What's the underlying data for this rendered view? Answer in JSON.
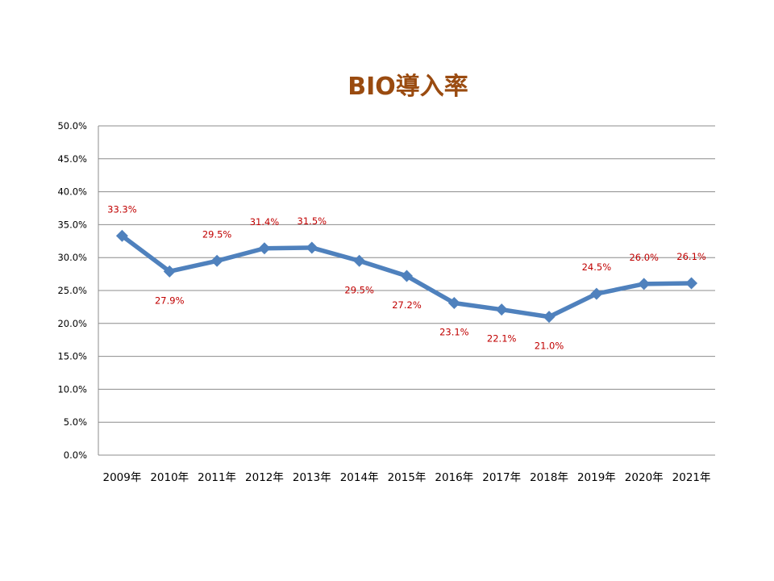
{
  "chart_data": {
    "type": "line",
    "title": "BIO導入率",
    "xlabel": "",
    "ylabel": "",
    "categories": [
      "2009年",
      "2010年",
      "2011年",
      "2012年",
      "2013年",
      "2014年",
      "2015年",
      "2016年",
      "2017年",
      "2018年",
      "2019年",
      "2020年",
      "2021年"
    ],
    "series": [
      {
        "values": [
          33.3,
          27.9,
          29.5,
          31.4,
          31.5,
          29.5,
          27.2,
          23.1,
          22.1,
          21.0,
          24.5,
          26.0,
          26.1
        ],
        "data_labels": [
          "33.3%",
          "27.9%",
          "29.5%",
          "31.4%",
          "31.5%",
          "29.5%",
          "27.2%",
          "23.1%",
          "22.1%",
          "21.0%",
          "24.5%",
          "26.0%",
          "26.1%"
        ]
      }
    ],
    "ylim": [
      0,
      50
    ],
    "yticks": [
      "0.0%",
      "5.0%",
      "10.0%",
      "15.0%",
      "20.0%",
      "25.0%",
      "30.0%",
      "35.0%",
      "40.0%",
      "45.0%",
      "50.0%"
    ],
    "grid": true,
    "legend": "none",
    "colors": {
      "line": "#4f81bd",
      "marker": "#4f81bd",
      "data_label": "#c00000",
      "title": "#9a4b10",
      "grid": "#8c8c8c"
    }
  }
}
